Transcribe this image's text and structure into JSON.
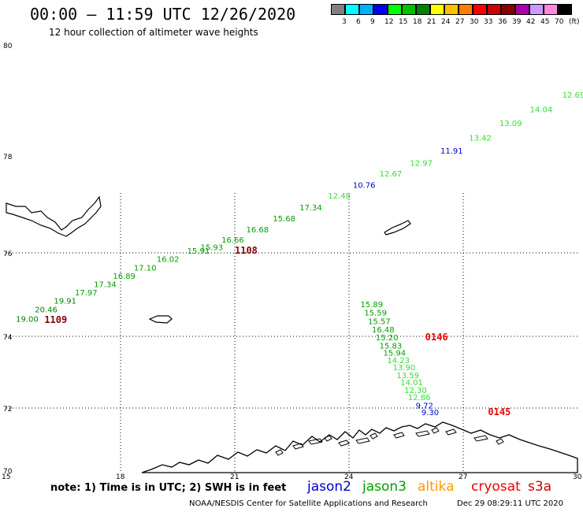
{
  "header": {
    "title": "00:00 – 11:59 UTC 12/26/2020",
    "subtitle": "12 hour collection of altimeter wave heights"
  },
  "legend": {
    "bins": [
      {
        "label": "3",
        "color": "#808080"
      },
      {
        "label": "6",
        "color": "#00ffff"
      },
      {
        "label": "9",
        "color": "#00b0ff"
      },
      {
        "label": "12",
        "color": "#0000ee"
      },
      {
        "label": "15",
        "color": "#00ff00"
      },
      {
        "label": "18",
        "color": "#00c000"
      },
      {
        "label": "21",
        "color": "#008000"
      },
      {
        "label": "24",
        "color": "#ffff00"
      },
      {
        "label": "27",
        "color": "#ffc000"
      },
      {
        "label": "30",
        "color": "#ff8000"
      },
      {
        "label": "33",
        "color": "#ff0000"
      },
      {
        "label": "36",
        "color": "#cc0000"
      },
      {
        "label": "39",
        "color": "#880000"
      },
      {
        "label": "42",
        "color": "#aa00aa"
      },
      {
        "label": "45",
        "color": "#cc99ff"
      },
      {
        "label": "70",
        "color": "#ff88dd"
      },
      {
        "label": "(ft)",
        "color": "#000000"
      }
    ]
  },
  "axes": {
    "lat_ticks": [
      "80",
      "78",
      "76",
      "74",
      "72",
      "70"
    ],
    "lon_ticks": [
      "15",
      "18",
      "21",
      "24",
      "27",
      "30"
    ]
  },
  "wave_labels": [
    {
      "text": "19.00",
      "lon": 15.25,
      "lat": 74.35,
      "color": "#008000"
    },
    {
      "text": "20.46",
      "lon": 15.75,
      "lat": 74.58,
      "color": "#008000"
    },
    {
      "text": "19.91",
      "lon": 16.25,
      "lat": 74.78,
      "color": "#008000"
    },
    {
      "text": "17.97",
      "lon": 16.8,
      "lat": 74.98,
      "color": "#00a000"
    },
    {
      "text": "17.34",
      "lon": 17.3,
      "lat": 75.18,
      "color": "#00a000"
    },
    {
      "text": "16.89",
      "lon": 17.8,
      "lat": 75.38,
      "color": "#00a000"
    },
    {
      "text": "17.10",
      "lon": 18.35,
      "lat": 75.58,
      "color": "#00a000"
    },
    {
      "text": "16.02",
      "lon": 18.95,
      "lat": 75.78,
      "color": "#00a000"
    },
    {
      "text": "15.91",
      "lon": 19.75,
      "lat": 75.98,
      "color": "#00a000"
    },
    {
      "text": "15.93",
      "lon": 20.1,
      "lat": 76.06,
      "color": "#00a000"
    },
    {
      "text": "16.66",
      "lon": 20.65,
      "lat": 76.21,
      "color": "#00a000"
    },
    {
      "text": "16.68",
      "lon": 21.3,
      "lat": 76.42,
      "color": "#00a000"
    },
    {
      "text": "15.68",
      "lon": 22.0,
      "lat": 76.65,
      "color": "#00a000"
    },
    {
      "text": "17.34",
      "lon": 22.7,
      "lat": 76.88,
      "color": "#00a000"
    },
    {
      "text": "12.48",
      "lon": 23.45,
      "lat": 77.12,
      "color": "#33dd33"
    },
    {
      "text": "10.76",
      "lon": 24.1,
      "lat": 77.34,
      "color": "#0000cc"
    },
    {
      "text": "12.67",
      "lon": 24.8,
      "lat": 77.58,
      "color": "#33dd33"
    },
    {
      "text": "12.97",
      "lon": 25.6,
      "lat": 77.8,
      "color": "#33dd33"
    },
    {
      "text": "11.91",
      "lon": 26.4,
      "lat": 78.04,
      "color": "#0000cc"
    },
    {
      "text": "13.42",
      "lon": 27.15,
      "lat": 78.28,
      "color": "#33dd33"
    },
    {
      "text": "13.09",
      "lon": 27.95,
      "lat": 78.54,
      "color": "#33dd33"
    },
    {
      "text": "14.04",
      "lon": 28.75,
      "lat": 78.79,
      "color": "#33dd33"
    },
    {
      "text": "12.69",
      "lon": 29.6,
      "lat": 79.05,
      "color": "#33dd33"
    },
    {
      "text": "15.89",
      "lon": 24.3,
      "lat": 74.7,
      "color": "#00a000"
    },
    {
      "text": "15.59",
      "lon": 24.4,
      "lat": 74.5,
      "color": "#00a000"
    },
    {
      "text": "15.57",
      "lon": 24.5,
      "lat": 74.29,
      "color": "#00a000"
    },
    {
      "text": "16.48",
      "lon": 24.6,
      "lat": 74.09,
      "color": "#00a000"
    },
    {
      "text": "15.20",
      "lon": 24.7,
      "lat": 73.89,
      "color": "#00a000"
    },
    {
      "text": "15.83",
      "lon": 24.8,
      "lat": 73.66,
      "color": "#00a000"
    },
    {
      "text": "15.94",
      "lon": 24.9,
      "lat": 73.46,
      "color": "#00a000"
    },
    {
      "text": "14.23",
      "lon": 25.0,
      "lat": 73.25,
      "color": "#33dd33"
    },
    {
      "text": "13.90",
      "lon": 25.15,
      "lat": 73.05,
      "color": "#33dd33"
    },
    {
      "text": "13.59",
      "lon": 25.25,
      "lat": 72.84,
      "color": "#33dd33"
    },
    {
      "text": "14.01",
      "lon": 25.35,
      "lat": 72.64,
      "color": "#33dd33"
    },
    {
      "text": "12.30",
      "lon": 25.45,
      "lat": 72.42,
      "color": "#33dd33"
    },
    {
      "text": "12.86",
      "lon": 25.55,
      "lat": 72.22,
      "color": "#33dd33"
    },
    {
      "text": "9.72",
      "lon": 25.75,
      "lat": 71.99,
      "color": "#0000cc"
    },
    {
      "text": "9.30",
      "lon": 25.9,
      "lat": 71.77,
      "color": "#0000cc"
    }
  ],
  "time_labels": [
    {
      "text": "1109",
      "lon": 16.0,
      "lat": 74.32,
      "color": "#880000"
    },
    {
      "text": "1108",
      "lon": 21.0,
      "lat": 75.98,
      "color": "#880000"
    },
    {
      "text": "0146",
      "lon": 26.0,
      "lat": 73.89,
      "color": "#ee0000"
    },
    {
      "text": "0145",
      "lon": 27.65,
      "lat": 71.77,
      "color": "#ee0000"
    }
  ],
  "notes": {
    "text": "note: 1) Time is in UTC; 2) SWH is in feet"
  },
  "satellites": [
    {
      "name": "jason2",
      "color": "#0000cc"
    },
    {
      "name": "jason3",
      "color": "#00a000"
    },
    {
      "name": "altika",
      "color": "#ff9900"
    },
    {
      "name": "cryosat",
      "color": "#ee0000"
    },
    {
      "name": "s3a",
      "color": "#cc0000"
    }
  ],
  "footer": {
    "credit": "NOAA/NESDIS Center for Satellite Applications and Research",
    "timestamp": "Dec 29 08:29:11 UTC 2020"
  }
}
